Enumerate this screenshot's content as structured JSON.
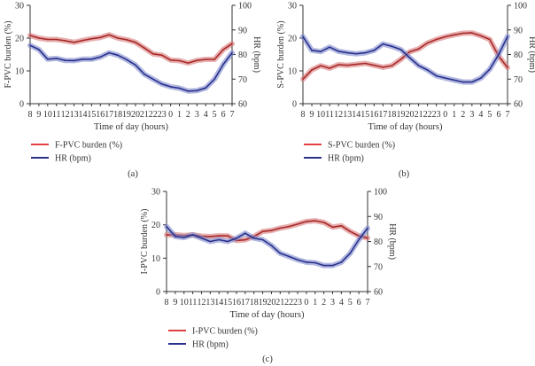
{
  "colors": {
    "pvc": "#a82828",
    "pvc_band": "#d77a7a",
    "pvc_legend": "#e04040",
    "hr": "#28308c",
    "hr_band": "#7f88cc",
    "axis": "#333333"
  },
  "chart_data": [
    {
      "type": "line",
      "panel_label": "(a)",
      "xlabel": "Time of day (hours)",
      "ylabel": "F-PVC burden (%)",
      "y2label": "HR (bpm)",
      "x": [
        "8",
        "9",
        "10",
        "11",
        "12",
        "13",
        "14",
        "15",
        "16",
        "17",
        "18",
        "19",
        "20",
        "21",
        "22",
        "23",
        "0",
        "1",
        "2",
        "3",
        "4",
        "5",
        "6",
        "7"
      ],
      "ylim": [
        0,
        30
      ],
      "yticks": [
        0,
        10,
        20,
        30
      ],
      "y2lim": [
        60,
        100
      ],
      "y2ticks": [
        60,
        70,
        80,
        90,
        100
      ],
      "grid": false,
      "legend_placement": "bottom-left",
      "series": [
        {
          "name": "F-PVC burden (%)",
          "axis": "left",
          "values": [
            20.8,
            20,
            19.6,
            19.6,
            19.2,
            18.7,
            19.3,
            19.8,
            20.2,
            21,
            20,
            19.5,
            18.7,
            17,
            15.2,
            14.8,
            13.3,
            13.1,
            12.4,
            13.2,
            13.5,
            13.5,
            16.5,
            18.3
          ]
        },
        {
          "name": "HR (bpm)",
          "axis": "right",
          "values": [
            83.7,
            82,
            78.1,
            78.4,
            77.6,
            77.5,
            78.1,
            78.1,
            79,
            80.7,
            79.7,
            77.9,
            75.7,
            72,
            70,
            68,
            66.9,
            66.3,
            65.1,
            65.3,
            66.4,
            70,
            76,
            80.7
          ]
        }
      ]
    },
    {
      "type": "line",
      "panel_label": "(b)",
      "xlabel": "Time of day (hours)",
      "ylabel": "S-PVC burden (%)",
      "y2label": "HR (bpm)",
      "x": [
        "8",
        "9",
        "10",
        "11",
        "12",
        "13",
        "14",
        "15",
        "16",
        "17",
        "18",
        "19",
        "20",
        "21",
        "22",
        "23",
        "0",
        "1",
        "2",
        "3",
        "4",
        "5",
        "6",
        "7"
      ],
      "ylim": [
        0,
        30
      ],
      "yticks": [
        0,
        10,
        20,
        30
      ],
      "y2lim": [
        60,
        100
      ],
      "y2ticks": [
        60,
        70,
        80,
        90,
        100
      ],
      "grid": false,
      "legend_placement": "bottom-left",
      "series": [
        {
          "name": "S-PVC burden (%)",
          "axis": "left",
          "values": [
            7.5,
            10.3,
            11.6,
            10.8,
            11.9,
            11.7,
            12,
            12.3,
            11.7,
            11.1,
            11.6,
            13.5,
            15.8,
            16.7,
            18.5,
            19.6,
            20.4,
            21,
            21.5,
            21.6,
            20.7,
            19.6,
            14.5,
            11
          ]
        },
        {
          "name": "HR (bpm)",
          "axis": "right",
          "values": [
            87.3,
            81.7,
            81.2,
            83,
            81.3,
            80.7,
            80.3,
            80.7,
            81.7,
            84.3,
            83.3,
            82,
            78.7,
            75.5,
            73.7,
            71.3,
            70.4,
            69.6,
            68.8,
            68.8,
            70.4,
            74,
            80,
            87.3
          ]
        }
      ]
    },
    {
      "type": "line",
      "panel_label": "(c)",
      "xlabel": "Time of day (hours)",
      "ylabel": "I-PVC burden (%)",
      "y2label": "HR (bpm)",
      "x": [
        "8",
        "9",
        "10",
        "11",
        "12",
        "13",
        "14",
        "15",
        "16",
        "17",
        "18",
        "19",
        "20",
        "21",
        "22",
        "23",
        "0",
        "1",
        "2",
        "3",
        "4",
        "5",
        "6",
        "7"
      ],
      "ylim": [
        0,
        30
      ],
      "yticks": [
        0,
        10,
        20,
        30
      ],
      "y2lim": [
        60,
        100
      ],
      "y2ticks": [
        60,
        70,
        80,
        90,
        100
      ],
      "grid": false,
      "legend_placement": "bottom-left",
      "series": [
        {
          "name": "I-PVC burden (%)",
          "axis": "left",
          "values": [
            17,
            17,
            16.8,
            17,
            16.6,
            16.5,
            16.7,
            16.7,
            15.3,
            15.5,
            16.5,
            18,
            18.3,
            19,
            19.5,
            20.2,
            21,
            21.2,
            20.7,
            19.3,
            19.7,
            18,
            16.7,
            16
          ]
        },
        {
          "name": "HR (bpm)",
          "axis": "right",
          "values": [
            86,
            82,
            81.6,
            82.7,
            81.3,
            80,
            80.7,
            80,
            81.3,
            83.3,
            81.3,
            80.7,
            78.4,
            75.3,
            74,
            72.7,
            71.7,
            71.5,
            70.4,
            70.4,
            71.7,
            75.3,
            80.7,
            85.3
          ]
        }
      ]
    }
  ]
}
